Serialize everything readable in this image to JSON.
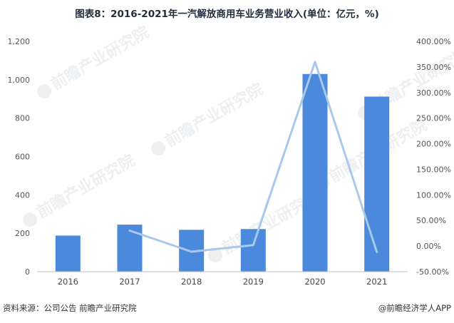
{
  "title": "图表8：2016-2021年一汽解放商用车业务营业收入(单位：亿元，%)",
  "watermark": "前瞻产业研究院",
  "footer": {
    "source": "资料来源：公司公告 前瞻产业研究院",
    "brand": "@前瞻经济学人APP"
  },
  "chart_data": {
    "type": "bar",
    "categories": [
      "2016",
      "2017",
      "2018",
      "2019",
      "2020",
      "2021"
    ],
    "series": [
      {
        "type": "bar",
        "axis": "left",
        "color": "#4a89dc",
        "values": [
          188,
          245,
          218,
          222,
          1030,
          912
        ]
      },
      {
        "type": "line",
        "axis": "right",
        "color": "#a9c8ea",
        "values": [
          null,
          30.3,
          -11.0,
          1.8,
          360.0,
          -11.5
        ]
      }
    ],
    "y_left": {
      "ticks": [
        "0",
        "200",
        "400",
        "600",
        "800",
        "1,000",
        "1,200"
      ],
      "min": 0,
      "max": 1200
    },
    "y_right": {
      "ticks": [
        "-50.00%",
        "0.00%",
        "50.00%",
        "100.00%",
        "150.00%",
        "200.00%",
        "250.00%",
        "300.00%",
        "350.00%",
        "400.00%"
      ],
      "min": -50,
      "max": 400
    },
    "grid": false,
    "legend": "none"
  }
}
